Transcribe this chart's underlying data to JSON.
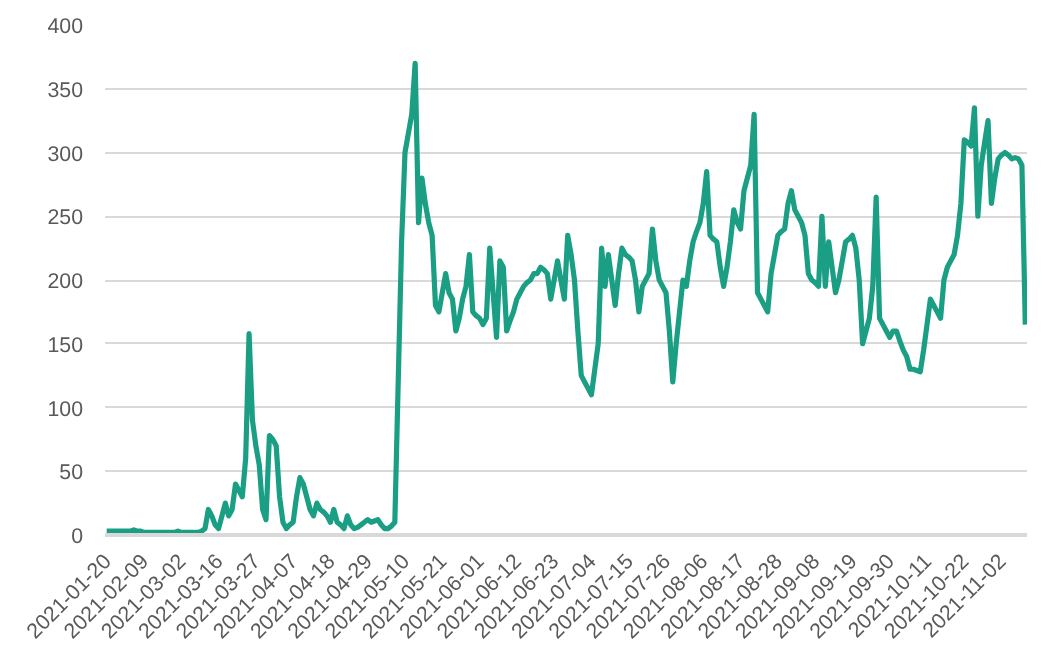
{
  "chart_data": {
    "type": "line",
    "categories": [
      "2021-01-20",
      null,
      null,
      null,
      null,
      null,
      null,
      null,
      null,
      null,
      null,
      "2021-02-09",
      null,
      null,
      null,
      null,
      null,
      null,
      null,
      null,
      null,
      null,
      "2021-03-02",
      null,
      null,
      null,
      null,
      null,
      null,
      null,
      null,
      null,
      null,
      "2021-03-16",
      null,
      null,
      null,
      null,
      null,
      null,
      null,
      null,
      null,
      null,
      "2021-03-27",
      null,
      null,
      null,
      null,
      null,
      null,
      null,
      null,
      null,
      null,
      "2021-04-07",
      null,
      null,
      null,
      null,
      null,
      null,
      null,
      null,
      null,
      null,
      "2021-04-18",
      null,
      null,
      null,
      null,
      null,
      null,
      null,
      null,
      null,
      null,
      "2021-04-29",
      null,
      null,
      null,
      null,
      null,
      null,
      null,
      null,
      null,
      null,
      "2021-05-10",
      null,
      null,
      null,
      null,
      null,
      null,
      null,
      null,
      null,
      null,
      "2021-05-21",
      null,
      null,
      null,
      null,
      null,
      null,
      null,
      null,
      null,
      null,
      "2021-06-01",
      null,
      null,
      null,
      null,
      null,
      null,
      null,
      null,
      null,
      null,
      "2021-06-12",
      null,
      null,
      null,
      null,
      null,
      null,
      null,
      null,
      null,
      null,
      "2021-06-23",
      null,
      null,
      null,
      null,
      null,
      null,
      null,
      null,
      null,
      null,
      "2021-07-04",
      null,
      null,
      null,
      null,
      null,
      null,
      null,
      null,
      null,
      null,
      "2021-07-15",
      null,
      null,
      null,
      null,
      null,
      null,
      null,
      null,
      null,
      null,
      "2021-07-26",
      null,
      null,
      null,
      null,
      null,
      null,
      null,
      null,
      null,
      null,
      "2021-08-06",
      null,
      null,
      null,
      null,
      null,
      null,
      null,
      null,
      null,
      null,
      "2021-08-17",
      null,
      null,
      null,
      null,
      null,
      null,
      null,
      null,
      null,
      null,
      "2021-08-28",
      null,
      null,
      null,
      null,
      null,
      null,
      null,
      null,
      null,
      null,
      "2021-09-08",
      null,
      null,
      null,
      null,
      null,
      null,
      null,
      null,
      null,
      null,
      "2021-09-19",
      null,
      null,
      null,
      null,
      null,
      null,
      null,
      null,
      null,
      null,
      "2021-09-30",
      null,
      null,
      null,
      null,
      null,
      null,
      null,
      null,
      null,
      null,
      "2021-10-11",
      null,
      null,
      null,
      null,
      null,
      null,
      null,
      null,
      null,
      null,
      "2021-10-22",
      null,
      null,
      null,
      null,
      null,
      null,
      null,
      null,
      null,
      null,
      "2021-11-02",
      null,
      null,
      null,
      null,
      null,
      null,
      null
    ],
    "series": [
      {
        "color": "#1a9e84",
        "values": [
          3,
          3,
          3,
          3,
          3,
          3,
          3,
          3,
          4,
          3,
          3,
          2,
          2,
          2,
          2,
          2,
          2,
          2,
          2,
          2,
          2,
          3,
          2,
          2,
          2,
          2,
          2,
          2,
          3,
          5,
          20,
          15,
          8,
          5,
          15,
          25,
          15,
          20,
          40,
          35,
          30,
          60,
          158,
          90,
          70,
          55,
          20,
          12,
          78,
          75,
          70,
          30,
          10,
          5,
          8,
          10,
          30,
          45,
          40,
          30,
          20,
          15,
          25,
          20,
          18,
          15,
          10,
          20,
          10,
          8,
          5,
          15,
          8,
          5,
          6,
          8,
          10,
          12,
          10,
          11,
          12,
          8,
          5,
          5,
          7,
          10,
          120,
          230,
          300,
          315,
          330,
          370,
          245,
          280,
          260,
          245,
          235,
          180,
          175,
          190,
          205,
          190,
          185,
          160,
          170,
          185,
          195,
          220,
          175,
          172,
          170,
          165,
          170,
          225,
          190,
          155,
          215,
          210,
          160,
          168,
          175,
          185,
          190,
          195,
          198,
          200,
          205,
          205,
          210,
          208,
          205,
          185,
          200,
          215,
          200,
          185,
          235,
          220,
          200,
          160,
          125,
          120,
          115,
          110,
          130,
          150,
          225,
          195,
          220,
          200,
          180,
          205,
          225,
          220,
          218,
          215,
          200,
          175,
          195,
          200,
          205,
          240,
          215,
          200,
          195,
          190,
          160,
          120,
          150,
          175,
          200,
          195,
          215,
          230,
          238,
          245,
          260,
          285,
          235,
          232,
          230,
          210,
          195,
          210,
          230,
          255,
          245,
          240,
          270,
          280,
          290,
          330,
          190,
          185,
          180,
          175,
          205,
          220,
          235,
          238,
          240,
          260,
          270,
          255,
          250,
          245,
          235,
          205,
          200,
          198,
          195,
          250,
          195,
          230,
          210,
          190,
          200,
          215,
          230,
          232,
          235,
          225,
          200,
          150,
          160,
          170,
          195,
          265,
          170,
          165,
          160,
          155,
          160,
          160,
          152,
          145,
          140,
          130,
          130,
          129,
          128,
          145,
          165,
          185,
          180,
          175,
          170,
          200,
          210,
          215,
          220,
          235,
          260,
          310,
          308,
          305,
          335,
          250,
          290,
          308,
          325,
          260,
          280,
          295,
          298,
          300,
          298,
          295,
          296,
          295,
          290,
          165
        ]
      }
    ],
    "ylim": [
      0,
      400
    ],
    "yticks": [
      0,
      50,
      100,
      150,
      200,
      250,
      300,
      350,
      400
    ],
    "grid": "y",
    "line_style": "solid",
    "marker": "none"
  }
}
